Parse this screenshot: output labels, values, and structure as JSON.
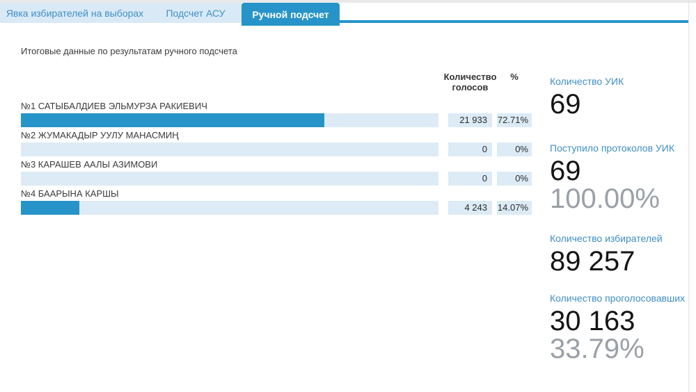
{
  "tabs": {
    "items": [
      {
        "label": "Явка избирателей на выборах",
        "active": false
      },
      {
        "label": "Подсчет АСУ",
        "active": false
      },
      {
        "label": "Ручной подсчет",
        "active": true
      }
    ]
  },
  "subtitle": "Итоговые данные по результатам ручного подсчета",
  "chart": {
    "votes_header_line1": "Количество",
    "votes_header_line2": "голосов",
    "percent_header": "%",
    "rows": [
      {
        "name": "№1 САТЫБАЛДИЕВ ЭЛЬМУРЗА РАКИЕВИЧ",
        "votes": "21 933",
        "percent": "72.71%",
        "percent_value": 72.71
      },
      {
        "name": "№2 ЖУМАКАДЫР УУЛУ МАНАСМИҢ",
        "votes": "0",
        "percent": "0%",
        "percent_value": 0
      },
      {
        "name": "№3 КАРАШЕВ ААЛЫ АЗИМОВИ",
        "votes": "0",
        "percent": "0%",
        "percent_value": 0
      },
      {
        "name": "№4 БААРЫНА КАРШЫ",
        "votes": "4 243",
        "percent": "14.07%",
        "percent_value": 14.07
      }
    ]
  },
  "chart_data": {
    "type": "bar",
    "orientation": "horizontal",
    "title": "Итоговые данные по результатам ручного подсчета",
    "categories": [
      "№1 САТЫБАЛДИЕВ ЭЛЬМУРЗА РАКИЕВИЧ",
      "№2 ЖУМАКАДЫР УУЛУ МАНАСМИҢ",
      "№3 КАРАШЕВ ААЛЫ АЗИМОВИ",
      "№4 БААРЫНА КАРШЫ"
    ],
    "series": [
      {
        "name": "Количество голосов",
        "values": [
          21933,
          0,
          0,
          4243
        ]
      },
      {
        "name": "%",
        "values": [
          72.71,
          0,
          0,
          14.07
        ]
      }
    ],
    "xlim": [
      0,
      100
    ],
    "grid": false,
    "legend_position": "none"
  },
  "stats": {
    "uik": {
      "label": "Количество УИК",
      "value": "69"
    },
    "protocols": {
      "label": "Поступило протоколов УИК",
      "value": "69",
      "percent": "100.00%"
    },
    "voters": {
      "label": "Количество избирателей",
      "value": "89 257"
    },
    "voted": {
      "label": "Количество проголосовавших",
      "value": "30 163",
      "percent": "33.79%"
    }
  },
  "colors": {
    "accent": "#2794c9",
    "tab_inactive_bg": "#d9eaf6",
    "tab_inactive_text": "#3f8ec6",
    "bar_fill": "#2794c9",
    "bar_track": "#dcebf6",
    "stat_label": "#3f8ec6",
    "stat_sub": "#9aa0a6"
  }
}
